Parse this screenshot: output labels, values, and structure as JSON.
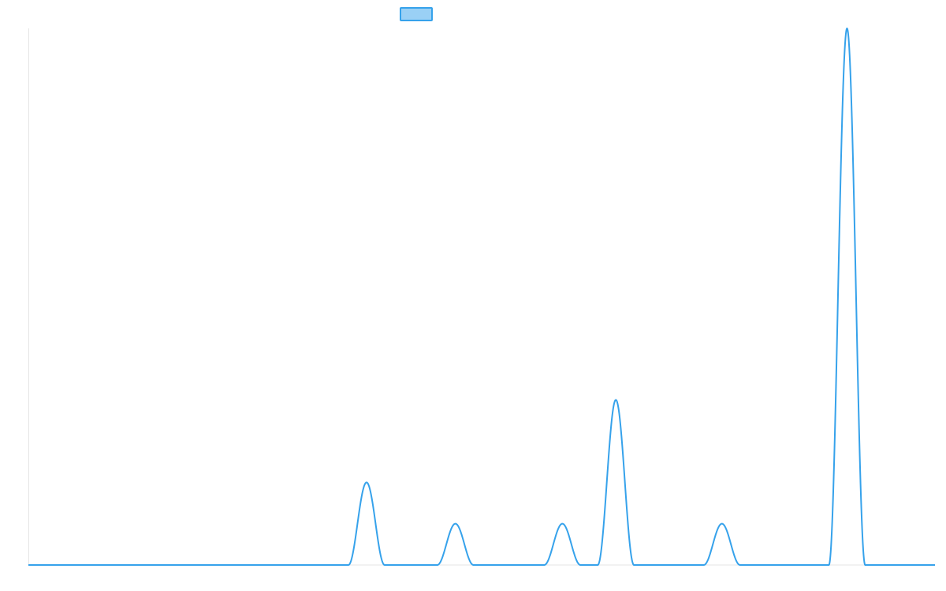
{
  "colors": {
    "line": "#36a2eb",
    "legend_fill": "#9ad0f5",
    "axis": "#e5e5e5"
  },
  "chart_data": {
    "type": "line",
    "title": "",
    "xlabel": "",
    "ylabel": "",
    "legend": {
      "placement": "top-center",
      "entries": [
        {
          "label": ""
        }
      ]
    },
    "grid": false,
    "xlim": [
      0,
      1
    ],
    "ylim": [
      0,
      6.5
    ],
    "baseline": 0,
    "series": [
      {
        "peaks": [
          {
            "center": 0.373,
            "height": 1.0,
            "half_width": 0.02
          },
          {
            "center": 0.471,
            "height": 0.5,
            "half_width": 0.02
          },
          {
            "center": 0.589,
            "height": 0.5,
            "half_width": 0.02
          },
          {
            "center": 0.648,
            "height": 2.0,
            "half_width": 0.02
          },
          {
            "center": 0.765,
            "height": 0.5,
            "half_width": 0.02
          },
          {
            "center": 0.903,
            "height": 6.5,
            "half_width": 0.02
          }
        ]
      }
    ]
  }
}
